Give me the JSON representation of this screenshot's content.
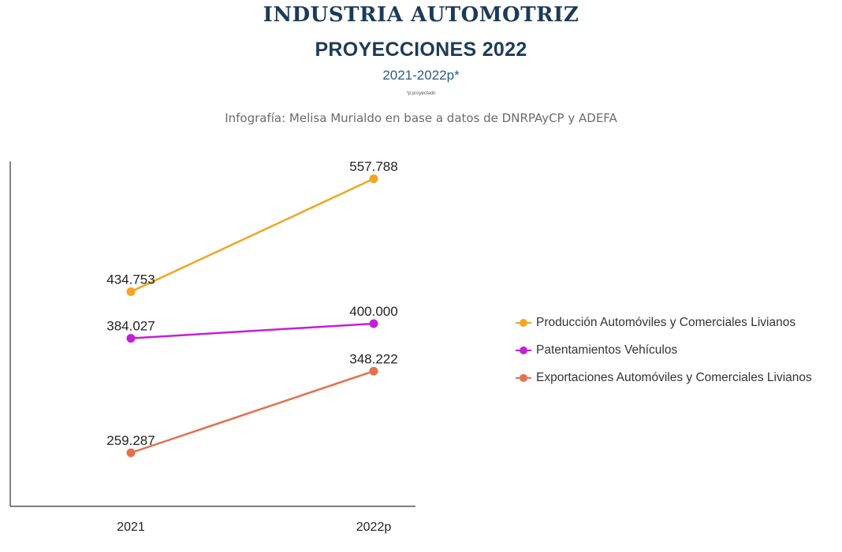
{
  "header": {
    "title": "INDUSTRIA AUTOMOTRIZ",
    "subtitle": "PROYECCIONES 2022",
    "period": "2021-2022p*",
    "note": "*p:proyectado",
    "source": "Infografía: Melisa Murialdo en base a datos de DNRPAyCP y ADEFA"
  },
  "chart_data": {
    "type": "line",
    "x": [
      "2021",
      "2022p"
    ],
    "series": [
      {
        "name": "Producción Automóviles y Comerciales Livianos",
        "color": "#f0a623",
        "values": [
          434753,
          557788
        ],
        "labels": [
          "434.753",
          "557.788"
        ]
      },
      {
        "name": "Patentamientos Vehículos",
        "color": "#c41fd6",
        "values": [
          384027,
          400000
        ],
        "labels": [
          "384.027",
          "400.000"
        ]
      },
      {
        "name": "Exportaciones Automóviles y Comerciales Livianos",
        "color": "#e5704d",
        "values": [
          259287,
          348222
        ],
        "labels": [
          "259.287",
          "348.222"
        ]
      }
    ],
    "legend": "right",
    "grid": false
  }
}
